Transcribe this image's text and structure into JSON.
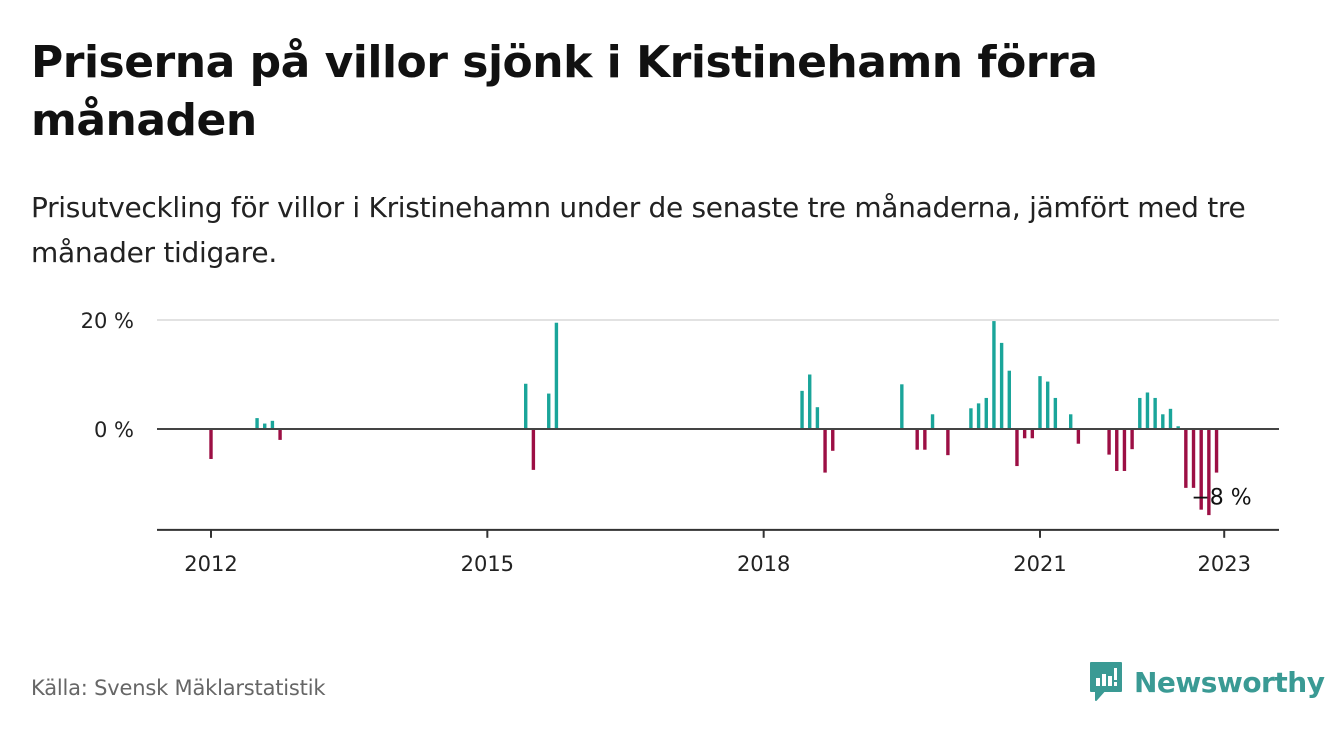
{
  "header": {
    "title": "Priserna på villor sjönk i Kristinehamn förra månaden",
    "subtitle": "Prisutveckling för villor i Kristinehamn under de senaste tre månaderna, jämfört med tre månader tidigare."
  },
  "footer": {
    "source": "Källa: Svensk Mäklarstatistik",
    "brand": "Newsworthy",
    "brand_icon": "newsworthy-logo-icon"
  },
  "chart_data": {
    "type": "bar",
    "title": "Priserna på villor sjönk i Kristinehamn förra månaden",
    "subtitle": "Prisutveckling för villor i Kristinehamn under de senaste tre månaderna, jämfört med tre månader tidigare.",
    "xlabel": "",
    "ylabel": "",
    "x_ticks": [
      "2012",
      "2015",
      "2018",
      "2021",
      "2023"
    ],
    "y_ticks": [
      {
        "value": 0,
        "label": "0 %"
      },
      {
        "value": 20,
        "label": "20 %"
      }
    ],
    "ylim": [
      -18.5,
      20
    ],
    "grid": "horizontal",
    "positive_color": "#1aa59a",
    "negative_color": "#9c0f44",
    "annotation": {
      "date": "2022-12",
      "value": -8,
      "label": "−8 %"
    },
    "x": [
      "2012-01",
      "2012-07",
      "2012-08",
      "2012-09",
      "2012-10",
      "2015-06",
      "2015-07",
      "2015-09",
      "2015-10",
      "2018-06",
      "2018-07",
      "2018-08",
      "2018-09",
      "2018-10",
      "2019-07",
      "2019-09",
      "2019-10",
      "2019-11",
      "2020-01",
      "2020-04",
      "2020-05",
      "2020-06",
      "2020-07",
      "2020-08",
      "2020-09",
      "2020-10",
      "2020-11",
      "2020-12",
      "2021-01",
      "2021-02",
      "2021-03",
      "2021-05",
      "2021-06",
      "2021-10",
      "2021-11",
      "2021-12",
      "2022-01",
      "2022-02",
      "2022-03",
      "2022-04",
      "2022-05",
      "2022-06",
      "2022-07",
      "2022-08",
      "2022-09",
      "2022-10",
      "2022-11",
      "2022-12"
    ],
    "values": [
      -5.5,
      2,
      1,
      1.5,
      -2,
      8.3,
      -7.5,
      6.5,
      19.5,
      7,
      10,
      4,
      -8,
      -4,
      8.2,
      -3.8,
      -3.8,
      2.7,
      -4.8,
      3.8,
      4.7,
      5.7,
      19.8,
      15.8,
      10.7,
      -6.8,
      -1.7,
      -1.7,
      9.7,
      8.7,
      5.7,
      2.7,
      -2.7,
      -4.7,
      -7.7,
      -7.7,
      -3.7,
      5.7,
      6.7,
      5.7,
      2.7,
      3.7,
      0.5,
      -10.8,
      -10.8,
      -14.8,
      -15.8,
      -8
    ]
  }
}
